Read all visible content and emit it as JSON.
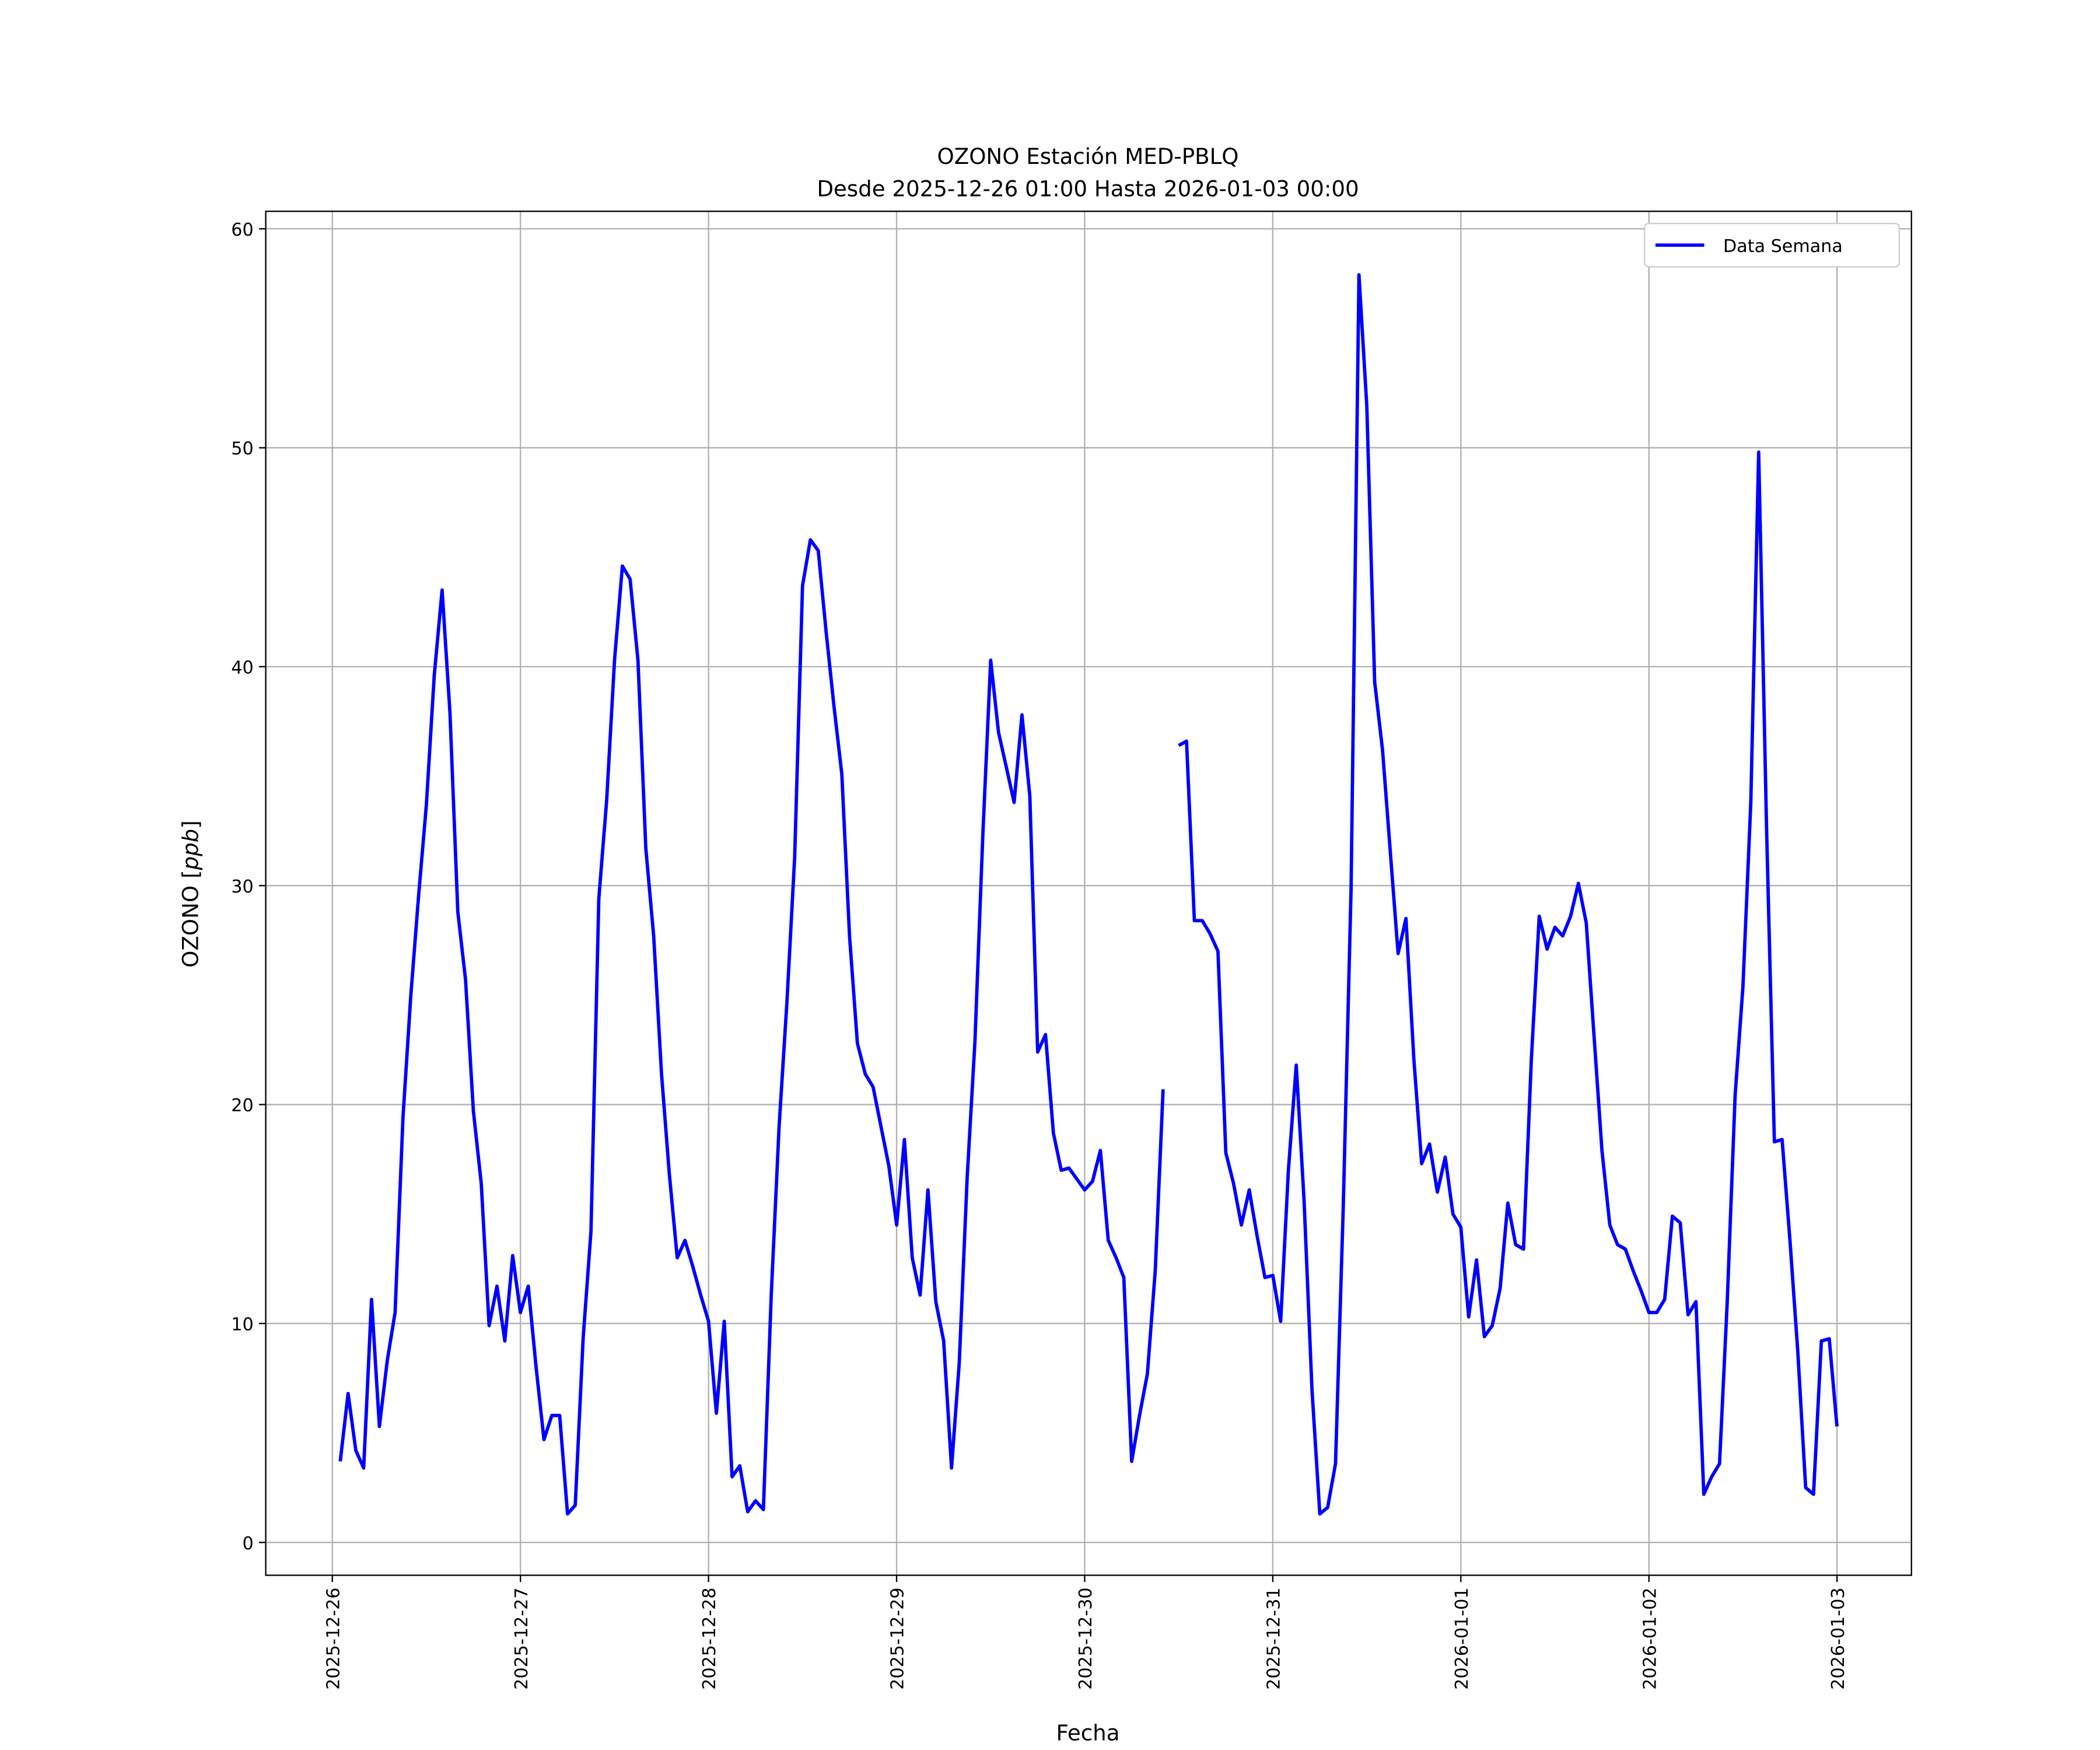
{
  "chart_data": {
    "type": "line",
    "title": "OZONO Estación MED-PBLQ",
    "subtitle": "Desde 2025-12-26 01:00 Hasta 2026-01-03 00:00",
    "xlabel": "Fecha",
    "ylabel": "OZONO [ppb]",
    "ylabel_unit": "ppb",
    "ylabel_prefix": "OZONO ",
    "x_start": "2025-12-26 01:00",
    "x_step": "1 hour",
    "xlim_hours": [
      -8.5,
      201.5
    ],
    "ylim": [
      -1.5,
      60.8
    ],
    "grid": true,
    "legend_position": "top-right",
    "x_ticks": [
      "2025-12-26",
      "2025-12-27",
      "2025-12-28",
      "2025-12-29",
      "2025-12-30",
      "2025-12-31",
      "2026-01-01",
      "2026-01-02",
      "2026-01-03"
    ],
    "y_ticks": [
      0,
      10,
      20,
      30,
      40,
      50,
      60
    ],
    "series": [
      {
        "name": "Data Semana",
        "color": "#0000ff",
        "values": [
          3.7,
          6.8,
          4.2,
          3.4,
          11.1,
          5.3,
          8.3,
          10.5,
          19.4,
          24.9,
          29.5,
          33.7,
          39.6,
          43.5,
          37.9,
          28.8,
          25.7,
          19.7,
          16.4,
          9.9,
          11.7,
          9.2,
          13.1,
          10.5,
          11.7,
          8.0,
          4.7,
          5.8,
          5.8,
          1.3,
          1.7,
          9.3,
          14.2,
          29.4,
          33.9,
          40.3,
          44.6,
          44.0,
          40.3,
          31.7,
          27.7,
          21.4,
          16.8,
          13.0,
          13.8,
          12.6,
          11.3,
          10.1,
          5.9,
          10.1,
          3.0,
          3.5,
          1.4,
          1.9,
          1.5,
          11.3,
          19.0,
          24.7,
          31.3,
          43.7,
          45.8,
          45.3,
          41.6,
          38.2,
          35.1,
          27.7,
          22.8,
          21.4,
          20.8,
          19.0,
          17.2,
          14.5,
          18.4,
          13.0,
          11.3,
          16.1,
          11.0,
          9.2,
          3.4,
          8.2,
          16.6,
          22.9,
          32.3,
          40.3,
          37.0,
          35.4,
          33.8,
          37.8,
          34.1,
          22.4,
          23.2,
          18.7,
          17.0,
          17.1,
          16.6,
          16.1,
          16.5,
          17.9,
          13.8,
          13.0,
          12.1,
          3.7,
          5.8,
          7.7,
          12.4,
          20.7,
          null,
          36.4,
          36.6,
          28.4,
          28.4,
          27.8,
          27.0,
          17.8,
          16.4,
          14.5,
          16.1,
          14.0,
          12.1,
          12.2,
          10.1,
          17.0,
          21.8,
          15.6,
          7.0,
          1.3,
          1.6,
          3.6,
          15.3,
          29.9,
          57.9,
          51.9,
          39.3,
          36.2,
          31.5,
          26.9,
          28.5,
          22.1,
          17.3,
          18.2,
          16.0,
          17.6,
          15.0,
          14.4,
          10.3,
          12.9,
          9.4,
          9.9,
          11.6,
          15.5,
          13.6,
          13.4,
          22.1,
          28.6,
          27.1,
          28.1,
          27.7,
          28.6,
          30.1,
          28.3,
          23.1,
          17.9,
          14.5,
          13.6,
          13.4,
          12.4,
          11.5,
          10.5,
          10.5,
          11.1,
          14.9,
          14.6,
          10.4,
          11.0,
          2.2,
          3.0,
          3.6,
          11.0,
          20.4,
          25.4,
          33.8,
          49.8,
          32.7,
          18.3,
          18.4,
          13.8,
          8.7,
          2.5,
          2.2,
          9.2,
          9.3,
          5.3
        ]
      }
    ]
  }
}
